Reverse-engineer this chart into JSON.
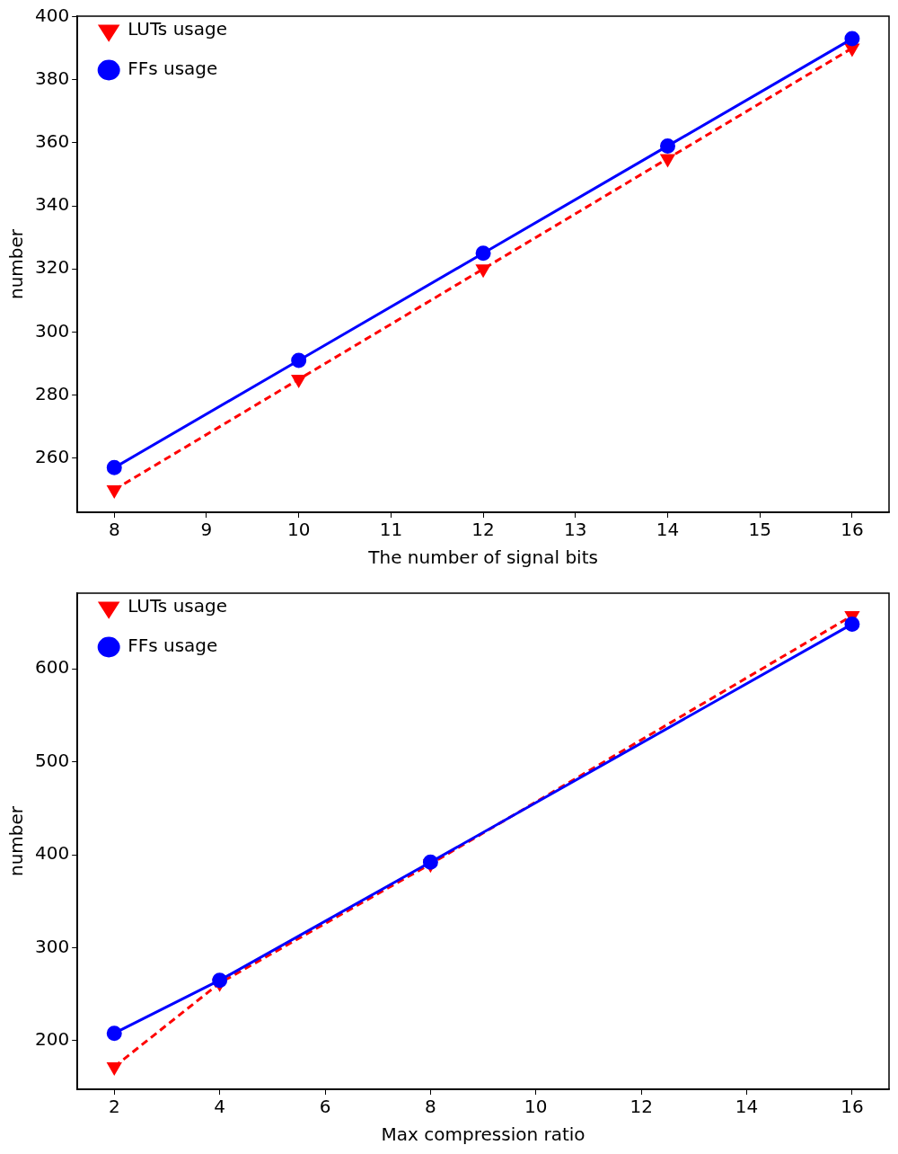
{
  "chart_data": [
    {
      "type": "line",
      "xlabel": "The number of signal bits",
      "ylabel": "number",
      "x": [
        8,
        10,
        12,
        14,
        16
      ],
      "xlim": [
        7.6,
        16.4
      ],
      "xticks": [
        8,
        9,
        10,
        11,
        12,
        13,
        14,
        15,
        16
      ],
      "ylim": [
        242.85,
        400.15
      ],
      "yticks": [
        260,
        280,
        300,
        320,
        340,
        360,
        380,
        400
      ],
      "grid": false,
      "legend": "top left",
      "series": [
        {
          "name": "LUTs usage",
          "color": "#ff0000",
          "values": [
            250,
            285,
            320,
            355,
            390
          ],
          "marker": "triangle",
          "line_style": "dashed"
        },
        {
          "name": "FFs usage",
          "color": "#0000ff",
          "values": [
            257,
            291,
            325,
            359,
            393
          ],
          "marker": "circle",
          "line_style": "solid"
        }
      ]
    },
    {
      "type": "line",
      "xlabel": "Max compression ratio",
      "ylabel": "number",
      "x": [
        2,
        4,
        8,
        16
      ],
      "xlim": [
        1.3,
        16.7
      ],
      "xticks": [
        2,
        4,
        6,
        8,
        10,
        12,
        14,
        16
      ],
      "ylim": [
        147.75,
        681.25
      ],
      "yticks": [
        200,
        300,
        400,
        500,
        600
      ],
      "grid": false,
      "legend": "top left",
      "series": [
        {
          "name": "LUTs usage",
          "color": "#ff0000",
          "values": [
            172,
            262,
            390,
            657
          ],
          "marker": "triangle",
          "line_style": "dashed"
        },
        {
          "name": "FFs usage",
          "color": "#0000ff",
          "values": [
            208,
            265,
            392,
            648
          ],
          "marker": "circle",
          "line_style": "solid"
        }
      ]
    }
  ]
}
